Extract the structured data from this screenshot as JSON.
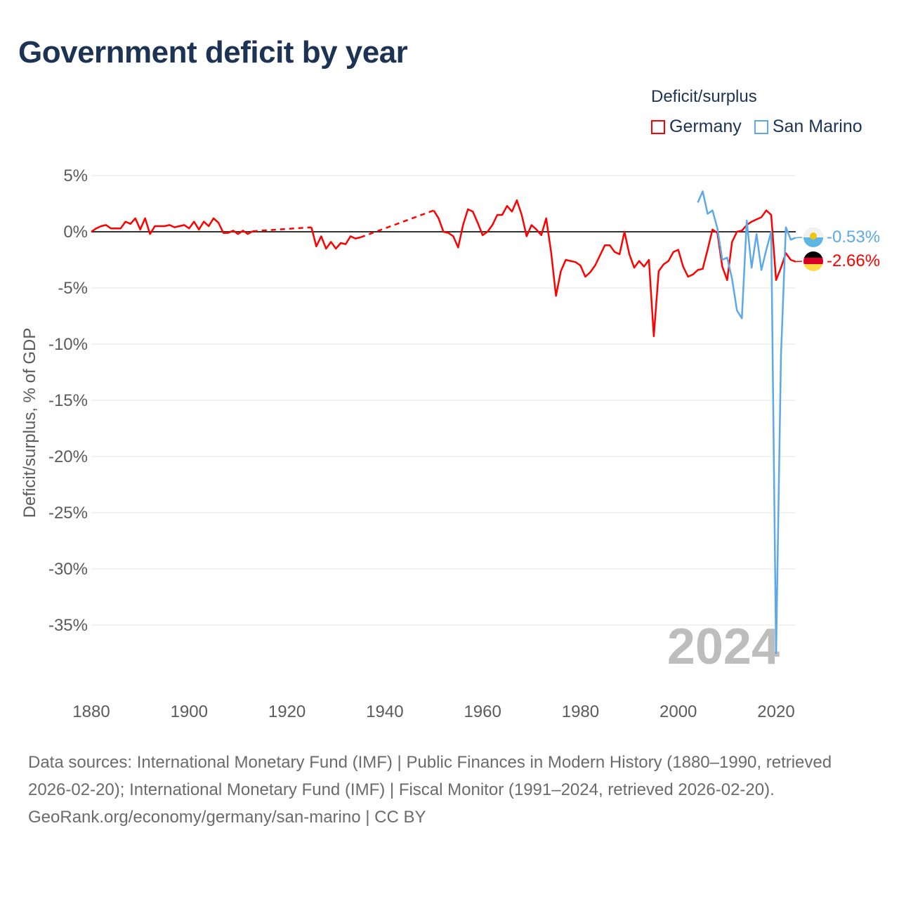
{
  "title": "Government deficit by year",
  "legend": {
    "title": "Deficit/surplus",
    "items": [
      {
        "name": "Germany",
        "color": "#ff0000"
      },
      {
        "name": "San Marino",
        "color": "#5ca8e8"
      }
    ]
  },
  "year_label": "2024",
  "end_labels": {
    "san_marino": "-0.53%",
    "germany": "-2.66%"
  },
  "footer": {
    "sources": "Data sources: International Monetary Fund (IMF) | Public Finances in Modern History (1880–1990, retrieved 2026-02-20); International Monetary Fund (IMF) | Fiscal Monitor (1991–2024, retrieved 2026-02-20).",
    "credit": "GeoRank.org/economy/germany/san-marino | CC BY"
  },
  "chart_data": {
    "type": "line",
    "title": "Government deficit by year",
    "xlabel": "",
    "ylabel": "Deficit/surplus, % of GDP",
    "xlim": [
      1880,
      2024
    ],
    "ylim": [
      -38,
      5.5
    ],
    "xticks": [
      "1880",
      "1900",
      "1920",
      "1940",
      "1960",
      "1980",
      "2000",
      "2020"
    ],
    "yticks": [
      {
        "v": 5,
        "l": "5%"
      },
      {
        "v": 0,
        "l": "0%"
      },
      {
        "v": -5,
        "l": "-5%"
      },
      {
        "v": -10,
        "l": "-10%"
      },
      {
        "v": -15,
        "l": "-15%"
      },
      {
        "v": -20,
        "l": "-20%"
      },
      {
        "v": -25,
        "l": "-25%"
      },
      {
        "v": -30,
        "l": "-30%"
      },
      {
        "v": -35,
        "l": "-35%"
      }
    ],
    "series": [
      {
        "name": "Germany",
        "color": "#ff0000",
        "points": [
          [
            1880,
            0
          ],
          [
            1881,
            0.3
          ],
          [
            1882,
            0.5
          ],
          [
            1883,
            0.6
          ],
          [
            1884,
            0.3
          ],
          [
            1885,
            0.3
          ],
          [
            1886,
            0.3
          ],
          [
            1887,
            0.9
          ],
          [
            1888,
            0.7
          ],
          [
            1889,
            1.2
          ],
          [
            1890,
            0.2
          ],
          [
            1891,
            1.2
          ],
          [
            1892,
            -0.2
          ],
          [
            1893,
            0.5
          ],
          [
            1894,
            0.5
          ],
          [
            1895,
            0.5
          ],
          [
            1896,
            0.6
          ],
          [
            1897,
            0.4
          ],
          [
            1898,
            0.5
          ],
          [
            1899,
            0.6
          ],
          [
            1900,
            0.3
          ],
          [
            1901,
            0.9
          ],
          [
            1902,
            0.2
          ],
          [
            1903,
            0.9
          ],
          [
            1904,
            0.5
          ],
          [
            1905,
            1.2
          ],
          [
            1906,
            0.8
          ],
          [
            1907,
            -0.1
          ],
          [
            1908,
            -0.1
          ],
          [
            1909,
            0.1
          ],
          [
            1910,
            -0.2
          ],
          [
            1911,
            0.1
          ],
          [
            1912,
            -0.2
          ],
          [
            1913,
            0.05
          ],
          [
            1925,
            0.4
          ],
          [
            1926,
            -1.3
          ],
          [
            1927,
            -0.4
          ],
          [
            1928,
            -1.5
          ],
          [
            1929,
            -0.9
          ],
          [
            1930,
            -1.5
          ],
          [
            1931,
            -1.0
          ],
          [
            1932,
            -1.1
          ],
          [
            1933,
            -0.4
          ],
          [
            1934,
            -0.6
          ],
          [
            1935,
            -0.5
          ],
          [
            1950,
            1.9
          ],
          [
            1951,
            1.2
          ],
          [
            1952,
            0.0
          ],
          [
            1953,
            -0.1
          ],
          [
            1954,
            -0.4
          ],
          [
            1955,
            -1.4
          ],
          [
            1956,
            0.6
          ],
          [
            1957,
            2.0
          ],
          [
            1958,
            1.8
          ],
          [
            1959,
            0.8
          ],
          [
            1960,
            -0.3
          ],
          [
            1961,
            0.0
          ],
          [
            1962,
            0.6
          ],
          [
            1963,
            1.5
          ],
          [
            1964,
            1.5
          ],
          [
            1965,
            2.3
          ],
          [
            1966,
            1.8
          ],
          [
            1967,
            2.8
          ],
          [
            1968,
            1.5
          ],
          [
            1969,
            -0.4
          ],
          [
            1970,
            0.6
          ],
          [
            1971,
            0.2
          ],
          [
            1972,
            -0.3
          ],
          [
            1973,
            1.2
          ],
          [
            1974,
            -1.8
          ],
          [
            1975,
            -5.7
          ],
          [
            1976,
            -3.5
          ],
          [
            1977,
            -2.5
          ],
          [
            1978,
            -2.6
          ],
          [
            1979,
            -2.7
          ],
          [
            1980,
            -3.0
          ],
          [
            1981,
            -4.0
          ],
          [
            1982,
            -3.6
          ],
          [
            1983,
            -3.0
          ],
          [
            1984,
            -2.1
          ],
          [
            1985,
            -1.2
          ],
          [
            1986,
            -1.2
          ],
          [
            1987,
            -1.8
          ],
          [
            1988,
            -2.0
          ],
          [
            1989,
            0.0
          ],
          [
            1990,
            -2.0
          ],
          [
            1991,
            -3.2
          ],
          [
            1992,
            -2.6
          ],
          [
            1993,
            -3.1
          ],
          [
            1994,
            -2.5
          ],
          [
            1995,
            -9.3
          ],
          [
            1996,
            -3.5
          ],
          [
            1997,
            -2.9
          ],
          [
            1998,
            -2.6
          ],
          [
            1999,
            -1.8
          ],
          [
            2000,
            -1.6
          ],
          [
            2001,
            -3.1
          ],
          [
            2002,
            -4.0
          ],
          [
            2003,
            -3.8
          ],
          [
            2004,
            -3.4
          ],
          [
            2005,
            -3.3
          ],
          [
            2006,
            -1.6
          ],
          [
            2007,
            0.2
          ],
          [
            2008,
            -0.1
          ],
          [
            2009,
            -3.1
          ],
          [
            2010,
            -4.3
          ],
          [
            2011,
            -0.9
          ],
          [
            2012,
            0.0
          ],
          [
            2013,
            0.1
          ],
          [
            2014,
            0.6
          ],
          [
            2015,
            0.9
          ],
          [
            2016,
            1.1
          ],
          [
            2017,
            1.3
          ],
          [
            2018,
            1.9
          ],
          [
            2019,
            1.5
          ],
          [
            2020,
            -4.3
          ],
          [
            2021,
            -3.2
          ],
          [
            2022,
            -1.9
          ],
          [
            2023,
            -2.5
          ],
          [
            2024,
            -2.66
          ]
        ]
      },
      {
        "name": "San Marino",
        "color": "#5ca8e8",
        "points": [
          [
            2004,
            2.6
          ],
          [
            2005,
            3.6
          ],
          [
            2006,
            1.6
          ],
          [
            2007,
            1.9
          ],
          [
            2008,
            0.3
          ],
          [
            2009,
            -2.5
          ],
          [
            2010,
            -2.3
          ],
          [
            2011,
            -4.2
          ],
          [
            2012,
            -7.0
          ],
          [
            2013,
            -7.7
          ],
          [
            2014,
            1.0
          ],
          [
            2015,
            -3.2
          ],
          [
            2016,
            -0.2
          ],
          [
            2017,
            -3.4
          ],
          [
            2018,
            -1.6
          ],
          [
            2019,
            0.0
          ],
          [
            2020,
            -37.5
          ],
          [
            2021,
            -11.0
          ],
          [
            2022,
            0.4
          ],
          [
            2023,
            -0.7
          ],
          [
            2024,
            -0.53
          ]
        ]
      }
    ]
  }
}
